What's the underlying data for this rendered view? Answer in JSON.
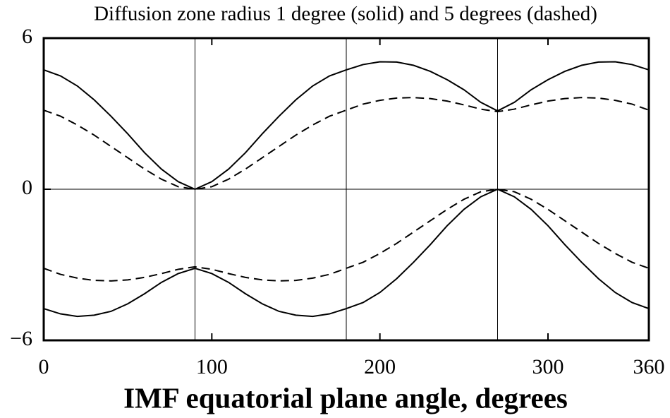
{
  "chart_data": {
    "type": "line",
    "title": "Diffusion zone radius 1 degree (solid) and 5 degrees (dashed)",
    "x_label": "IMF equatorial plane angle, degrees",
    "x": [
      0,
      10,
      20,
      30,
      40,
      50,
      60,
      70,
      80,
      90,
      100,
      110,
      120,
      130,
      140,
      150,
      160,
      170,
      180,
      190,
      200,
      210,
      220,
      230,
      240,
      250,
      260,
      270,
      280,
      290,
      300,
      310,
      320,
      330,
      340,
      350,
      360
    ],
    "series": [
      {
        "color": "#000000",
        "dashed": false,
        "values": [
          4.74,
          4.5,
          4.1,
          3.55,
          2.9,
          2.2,
          1.45,
          0.8,
          0.3,
          0,
          0.3,
          0.8,
          1.45,
          2.2,
          2.9,
          3.55,
          4.1,
          4.5,
          4.74,
          4.95,
          5.06,
          5.05,
          4.92,
          4.68,
          4.35,
          3.95,
          3.45,
          3.11,
          3.45,
          3.95,
          4.35,
          4.68,
          4.92,
          5.05,
          5.06,
          4.95,
          4.74
        ]
      },
      {
        "color": "#000000",
        "dashed": true,
        "values": [
          3.14,
          2.9,
          2.55,
          2.15,
          1.7,
          1.25,
          0.8,
          0.4,
          0.1,
          0,
          0.1,
          0.4,
          0.8,
          1.25,
          1.7,
          2.15,
          2.55,
          2.9,
          3.14,
          3.38,
          3.53,
          3.62,
          3.64,
          3.6,
          3.5,
          3.35,
          3.18,
          3.08,
          3.18,
          3.35,
          3.5,
          3.6,
          3.64,
          3.62,
          3.53,
          3.38,
          3.14
        ]
      },
      {
        "color": "#000000",
        "dashed": false,
        "values": [
          -4.74,
          -4.95,
          -5.05,
          -5.0,
          -4.85,
          -4.55,
          -4.15,
          -3.7,
          -3.35,
          -3.14,
          -3.35,
          -3.7,
          -4.15,
          -4.55,
          -4.85,
          -5.0,
          -5.05,
          -4.95,
          -4.74,
          -4.5,
          -4.1,
          -3.55,
          -2.9,
          -2.2,
          -1.45,
          -0.8,
          -0.3,
          0,
          -0.3,
          -0.8,
          -1.45,
          -2.2,
          -2.9,
          -3.55,
          -4.1,
          -4.5,
          -4.74
        ]
      },
      {
        "color": "#000000",
        "dashed": true,
        "values": [
          -3.14,
          -3.38,
          -3.53,
          -3.62,
          -3.64,
          -3.6,
          -3.5,
          -3.35,
          -3.18,
          -3.08,
          -3.18,
          -3.35,
          -3.5,
          -3.6,
          -3.64,
          -3.62,
          -3.53,
          -3.38,
          -3.14,
          -2.9,
          -2.55,
          -2.15,
          -1.7,
          -1.25,
          -0.8,
          -0.4,
          -0.1,
          0,
          -0.1,
          -0.4,
          -0.8,
          -1.25,
          -1.7,
          -2.15,
          -2.55,
          -2.9,
          -3.14
        ]
      }
    ],
    "xlim": [
      0,
      360
    ],
    "xticks": [
      0,
      100,
      200,
      300,
      360
    ],
    "ylim": [
      -6,
      6
    ],
    "yticks": [
      {
        "value": -6,
        "label": "−6"
      },
      0,
      6
    ],
    "ref_lines": {
      "x": [
        90,
        180,
        270
      ],
      "y": [
        0
      ]
    }
  }
}
